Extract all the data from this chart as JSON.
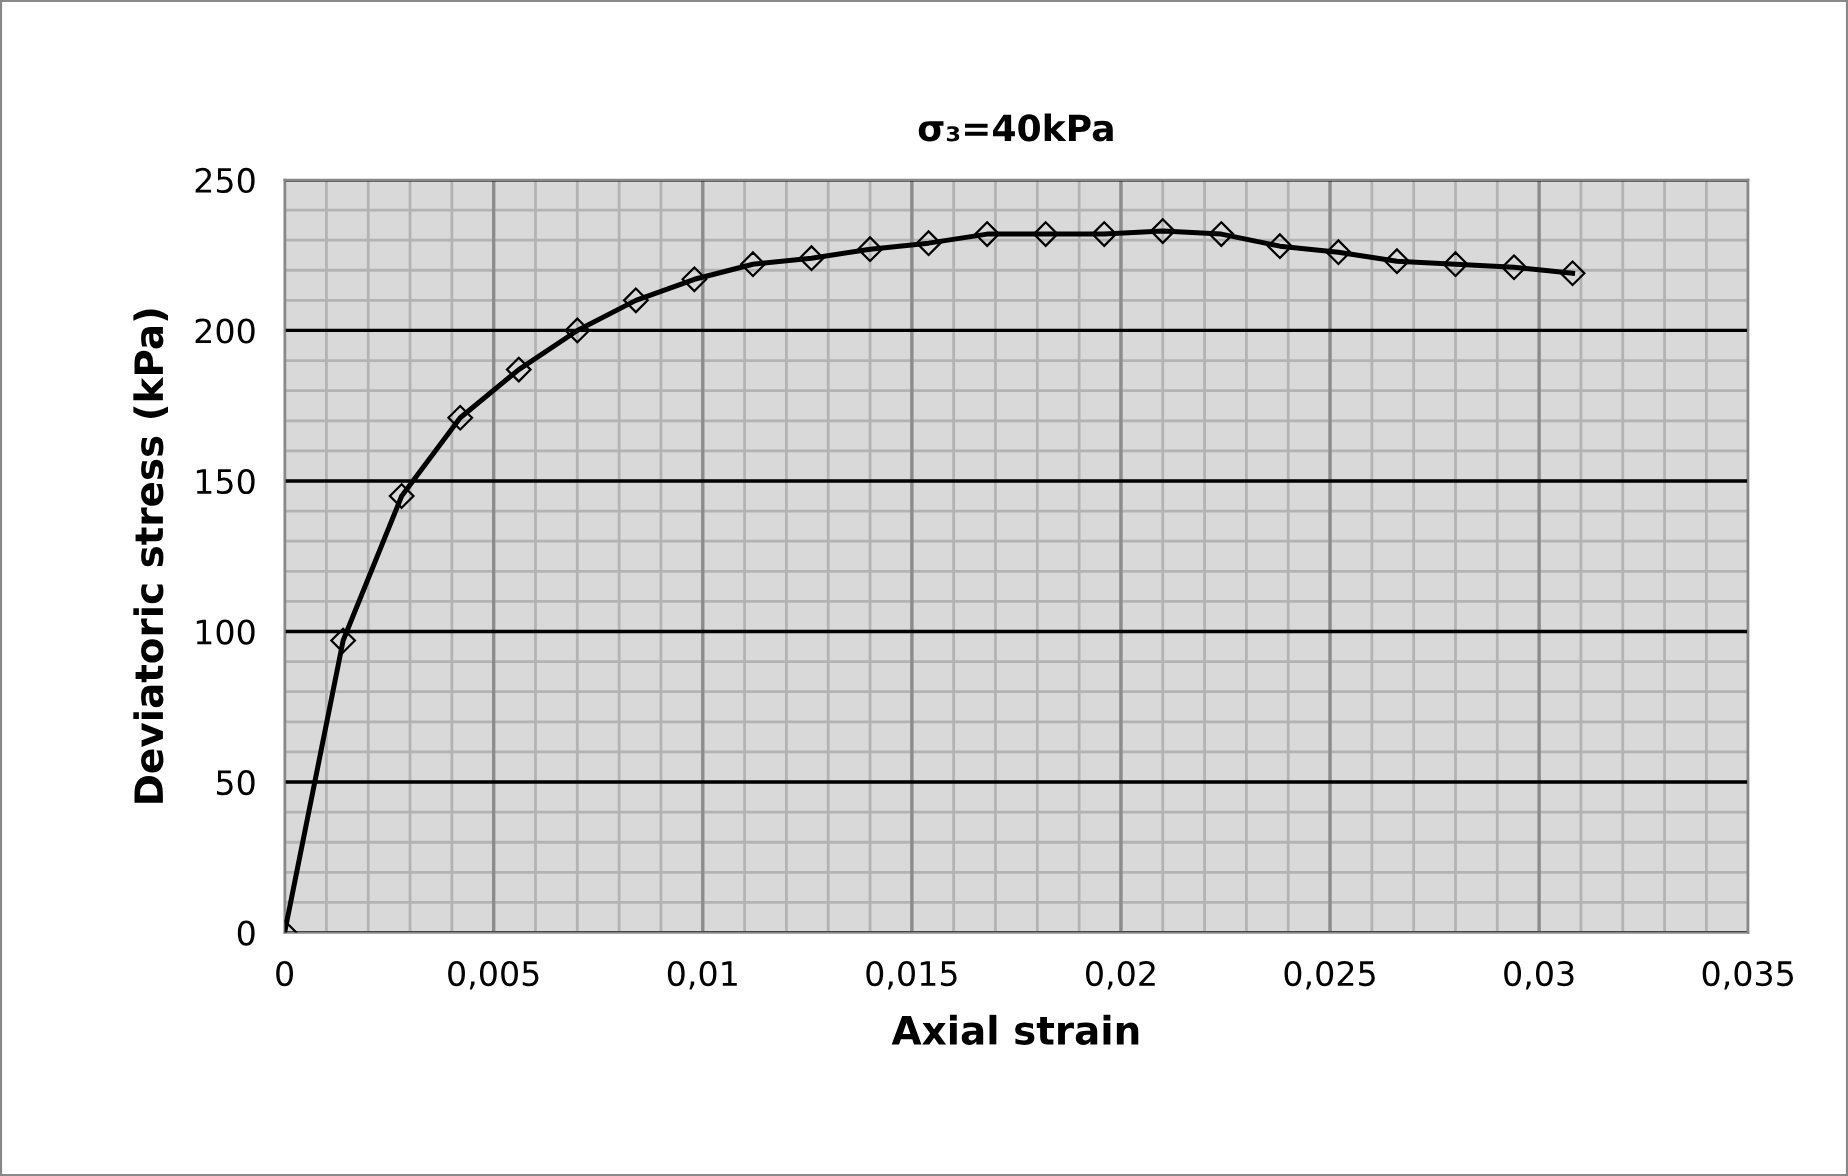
{
  "chart_data": {
    "type": "line",
    "title": "σ₃=40kPa",
    "xlabel": "Axial strain",
    "ylabel": "Deviatoric stress (kPa)",
    "x": [
      0,
      0.0014,
      0.0028,
      0.0042,
      0.0056,
      0.007,
      0.0084,
      0.0098,
      0.0112,
      0.0126,
      0.014,
      0.0154,
      0.0168,
      0.0182,
      0.0196,
      0.021,
      0.0224,
      0.0238,
      0.0252,
      0.0266,
      0.028,
      0.0294,
      0.0308
    ],
    "series": [
      {
        "color": "#000000",
        "values": [
          0,
          97,
          145,
          171,
          187,
          200,
          210,
          217,
          222,
          224,
          227,
          229,
          232,
          232,
          232,
          233,
          232,
          228,
          226,
          223,
          222,
          221,
          219
        ]
      }
    ],
    "marker": "diamond",
    "line_style": "solid",
    "grid": true,
    "legend": false,
    "xlim": [
      0,
      0.035
    ],
    "ylim": [
      0,
      250
    ],
    "xticks": [
      0,
      {
        "value": 0.005,
        "label": "0,005"
      },
      {
        "value": 0.01,
        "label": "0,01"
      },
      {
        "value": 0.015,
        "label": "0,015"
      },
      {
        "value": 0.02,
        "label": "0,02"
      },
      {
        "value": 0.025,
        "label": "0,025"
      },
      {
        "value": 0.03,
        "label": "0,03"
      },
      {
        "value": 0.035,
        "label": "0,035"
      }
    ],
    "yticks": [
      0,
      50,
      100,
      150,
      200,
      250
    ]
  }
}
